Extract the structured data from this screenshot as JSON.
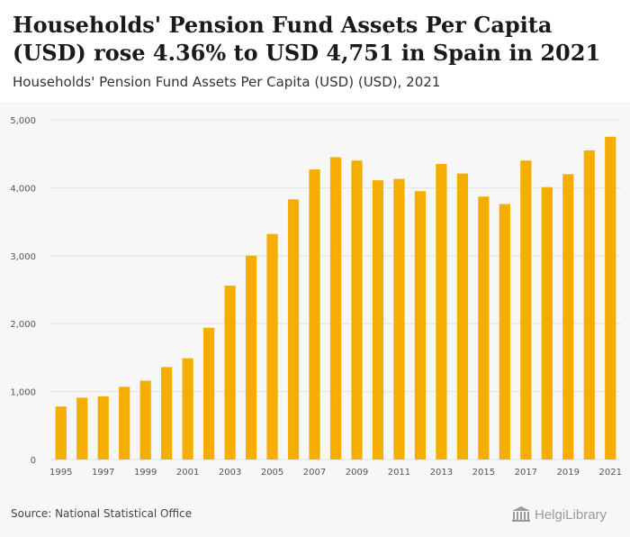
{
  "header": {
    "title": "Households' Pension Fund Assets Per Capita (USD) rose 4.36% to USD 4,751 in Spain in 2021",
    "subtitle": "Households' Pension Fund Assets Per Capita (USD) (USD), 2021"
  },
  "footer": {
    "source": "Source: National Statistical Office",
    "logo_text": "HelgiLibrary"
  },
  "colors": {
    "bar": "#f5ad00",
    "grid": "#e2e2e2",
    "axis_text": "#555555",
    "plot_background": "#f7f7f7"
  },
  "chart_data": {
    "type": "bar",
    "title": "Households' Pension Fund Assets Per Capita (USD) (USD), 2021",
    "xlabel": "",
    "ylabel": "",
    "ylim": [
      0,
      5000
    ],
    "yticks": [
      0,
      1000,
      2000,
      3000,
      4000,
      5000
    ],
    "ytick_labels": [
      "0",
      "1,000",
      "2,000",
      "3,000",
      "4,000",
      "5,000"
    ],
    "categories": [
      "1995",
      "1996",
      "1997",
      "1998",
      "1999",
      "2000",
      "2001",
      "2002",
      "2003",
      "2004",
      "2005",
      "2006",
      "2007",
      "2008",
      "2009",
      "2010",
      "2011",
      "2012",
      "2013",
      "2014",
      "2015",
      "2016",
      "2017",
      "2018",
      "2019",
      "2020",
      "2021"
    ],
    "xtick_labels": [
      "1995",
      "1997",
      "1999",
      "2001",
      "2003",
      "2005",
      "2007",
      "2009",
      "2011",
      "2013",
      "2015",
      "2017",
      "2019",
      "2021"
    ],
    "values": [
      780,
      910,
      930,
      1070,
      1160,
      1360,
      1490,
      1940,
      2560,
      3000,
      3320,
      3830,
      4270,
      4450,
      4400,
      4110,
      4130,
      3950,
      4350,
      4210,
      3870,
      3760,
      4400,
      4010,
      4200,
      4550,
      4751
    ],
    "grid": true,
    "legend": "none"
  }
}
